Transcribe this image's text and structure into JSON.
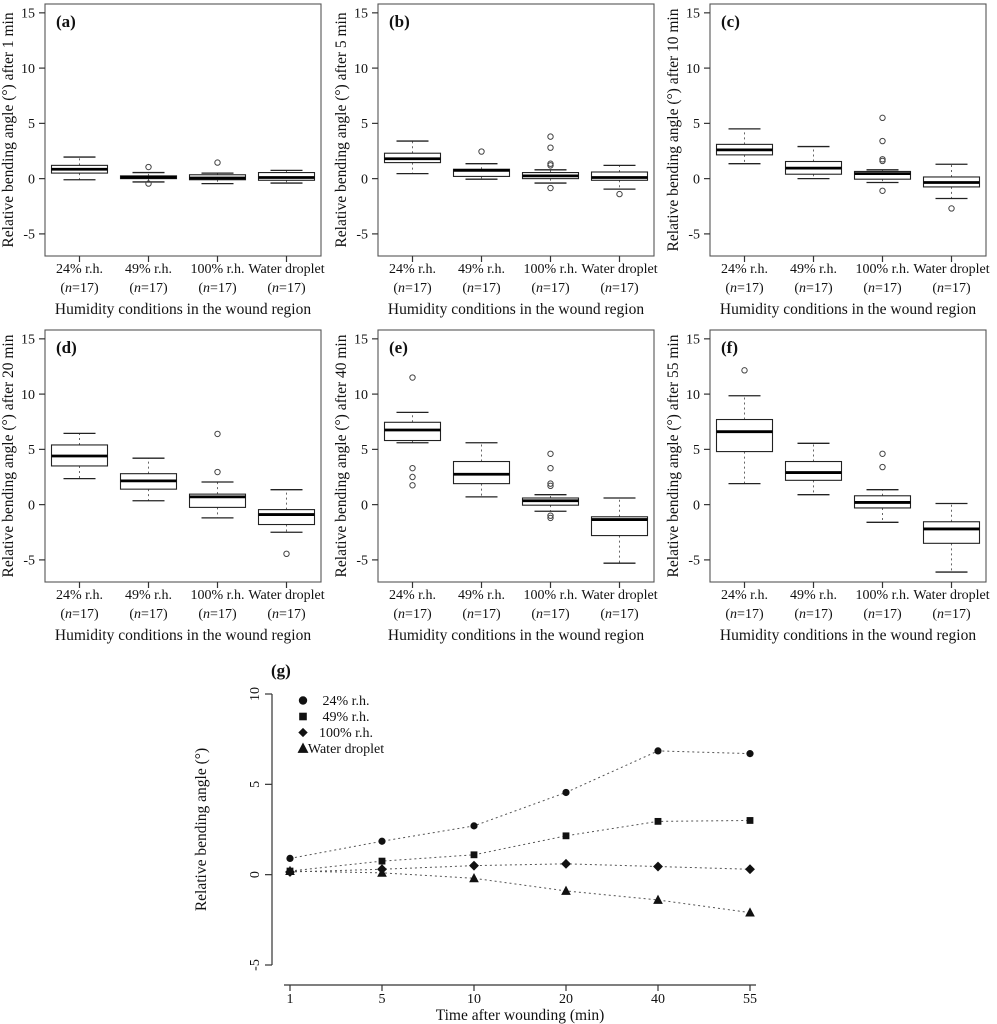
{
  "colors": {
    "foreground": "#111111",
    "frame": "#555555",
    "box_stroke": "#222222",
    "median": "#000000",
    "whisker": "#666666",
    "dotted_line": "#555555",
    "background": "#ffffff"
  },
  "chart_data": [
    {
      "id": "a",
      "type": "box",
      "panel_label": "(a)",
      "ylabel": "Relative bending angle (°) after 1 min",
      "xlabel": "Humidity conditions in the wound region",
      "categories": [
        "24% r.h.",
        "49% r.h.",
        "100% r.h.",
        "Water droplet"
      ],
      "n_label": "n=17",
      "yticks": [
        -5,
        0,
        5,
        10,
        15
      ],
      "ylim": [
        -7,
        15.8
      ],
      "grid": false,
      "whisker_style": "dashed",
      "boxes": [
        {
          "lo": -0.1,
          "q1": 0.5,
          "med": 0.85,
          "q3": 1.2,
          "hi": 1.95,
          "outliers": []
        },
        {
          "lo": -0.3,
          "q1": 0.0,
          "med": 0.12,
          "q3": 0.25,
          "hi": 0.55,
          "outliers": [
            1.05,
            -0.45
          ]
        },
        {
          "lo": -0.45,
          "q1": -0.1,
          "med": 0.05,
          "q3": 0.35,
          "hi": 0.5,
          "outliers": [
            1.45
          ]
        },
        {
          "lo": -0.4,
          "q1": -0.15,
          "med": 0.1,
          "q3": 0.55,
          "hi": 0.75,
          "outliers": []
        }
      ]
    },
    {
      "id": "b",
      "type": "box",
      "panel_label": "(b)",
      "ylabel": "Relative bending angle (°) after 5 min",
      "xlabel": "Humidity conditions in the wound region",
      "categories": [
        "24% r.h.",
        "49% r.h.",
        "100% r.h.",
        "Water droplet"
      ],
      "n_label": "n=17",
      "yticks": [
        -5,
        0,
        5,
        10,
        15
      ],
      "ylim": [
        -7,
        15.8
      ],
      "grid": false,
      "whisker_style": "dashed",
      "boxes": [
        {
          "lo": 0.45,
          "q1": 1.45,
          "med": 1.8,
          "q3": 2.3,
          "hi": 3.4,
          "outliers": []
        },
        {
          "lo": -0.05,
          "q1": 0.2,
          "med": 0.75,
          "q3": 0.85,
          "hi": 1.35,
          "outliers": [
            2.45
          ]
        },
        {
          "lo": -0.4,
          "q1": 0.0,
          "med": 0.25,
          "q3": 0.55,
          "hi": 0.8,
          "outliers": [
            3.8,
            2.8,
            1.35,
            1.2,
            -0.85
          ]
        },
        {
          "lo": -0.95,
          "q1": -0.15,
          "med": 0.1,
          "q3": 0.6,
          "hi": 1.2,
          "outliers": [
            -1.4
          ]
        }
      ]
    },
    {
      "id": "c",
      "type": "box",
      "panel_label": "(c)",
      "ylabel": "Relative bending angle (°) after 10 min",
      "xlabel": "Humidity conditions in the wound region",
      "categories": [
        "24% r.h.",
        "49% r.h.",
        "100% r.h.",
        "Water droplet"
      ],
      "n_label": "n=17",
      "yticks": [
        -5,
        0,
        5,
        10,
        15
      ],
      "ylim": [
        -7,
        15.8
      ],
      "grid": false,
      "whisker_style": "dashed",
      "boxes": [
        {
          "lo": 1.35,
          "q1": 2.15,
          "med": 2.6,
          "q3": 3.1,
          "hi": 4.5,
          "outliers": []
        },
        {
          "lo": 0.0,
          "q1": 0.4,
          "med": 0.95,
          "q3": 1.55,
          "hi": 2.9,
          "outliers": []
        },
        {
          "lo": -0.35,
          "q1": -0.05,
          "med": 0.45,
          "q3": 0.65,
          "hi": 0.8,
          "outliers": [
            5.5,
            3.4,
            1.75,
            1.6,
            -1.1
          ]
        },
        {
          "lo": -1.8,
          "q1": -0.75,
          "med": -0.35,
          "q3": 0.15,
          "hi": 1.3,
          "outliers": [
            -2.7
          ]
        }
      ]
    },
    {
      "id": "d",
      "type": "box",
      "panel_label": "(d)",
      "ylabel": "Relative bending angle (°) after 20 min",
      "xlabel": "Humidity conditions in the wound region",
      "categories": [
        "24% r.h.",
        "49% r.h.",
        "100% r.h.",
        "Water droplet"
      ],
      "n_label": "n=17",
      "yticks": [
        -5,
        0,
        5,
        10,
        15
      ],
      "ylim": [
        -7,
        15.8
      ],
      "grid": false,
      "whisker_style": "dashed",
      "boxes": [
        {
          "lo": 2.35,
          "q1": 3.5,
          "med": 4.4,
          "q3": 5.4,
          "hi": 6.45,
          "outliers": []
        },
        {
          "lo": 0.35,
          "q1": 1.4,
          "med": 2.15,
          "q3": 2.8,
          "hi": 4.2,
          "outliers": []
        },
        {
          "lo": -1.2,
          "q1": -0.25,
          "med": 0.7,
          "q3": 0.95,
          "hi": 2.05,
          "outliers": [
            6.4,
            2.95
          ]
        },
        {
          "lo": -2.5,
          "q1": -1.8,
          "med": -0.9,
          "q3": -0.45,
          "hi": 1.35,
          "outliers": [
            -4.45
          ]
        }
      ]
    },
    {
      "id": "e",
      "type": "box",
      "panel_label": "(e)",
      "ylabel": "Relative bending angle (°) after 40 min",
      "xlabel": "Humidity conditions in the wound region",
      "categories": [
        "24% r.h.",
        "49% r.h.",
        "100% r.h.",
        "Water droplet"
      ],
      "n_label": "n=17",
      "yticks": [
        -5,
        0,
        5,
        10,
        15
      ],
      "ylim": [
        -7,
        15.8
      ],
      "grid": false,
      "whisker_style": "dashed",
      "boxes": [
        {
          "lo": 5.6,
          "q1": 5.8,
          "med": 6.75,
          "q3": 7.45,
          "hi": 8.35,
          "outliers": [
            11.5,
            3.3,
            2.5,
            1.75
          ]
        },
        {
          "lo": 0.7,
          "q1": 1.9,
          "med": 2.75,
          "q3": 3.9,
          "hi": 5.6,
          "outliers": []
        },
        {
          "lo": -0.6,
          "q1": -0.05,
          "med": 0.35,
          "q3": 0.6,
          "hi": 0.9,
          "outliers": [
            4.6,
            3.3,
            1.9,
            1.7,
            -1.0,
            -1.2
          ]
        },
        {
          "lo": -5.3,
          "q1": -2.8,
          "med": -1.35,
          "q3": -1.1,
          "hi": 0.6,
          "outliers": []
        }
      ]
    },
    {
      "id": "f",
      "type": "box",
      "panel_label": "(f)",
      "ylabel": "Relative bending angle (°) after 55 min",
      "xlabel": "Humidity conditions in the wound region",
      "categories": [
        "24% r.h.",
        "49% r.h.",
        "100% r.h.",
        "Water droplet"
      ],
      "n_label": "n=17",
      "yticks": [
        -5,
        0,
        5,
        10,
        15
      ],
      "ylim": [
        -7,
        15.8
      ],
      "grid": false,
      "whisker_style": "dashed",
      "boxes": [
        {
          "lo": 1.9,
          "q1": 4.8,
          "med": 6.6,
          "q3": 7.7,
          "hi": 9.85,
          "outliers": [
            12.15
          ]
        },
        {
          "lo": 0.9,
          "q1": 2.2,
          "med": 2.9,
          "q3": 3.9,
          "hi": 5.55,
          "outliers": []
        },
        {
          "lo": -1.6,
          "q1": -0.3,
          "med": 0.2,
          "q3": 0.8,
          "hi": 1.35,
          "outliers": [
            4.6,
            3.4
          ]
        },
        {
          "lo": -6.1,
          "q1": -3.5,
          "med": -2.2,
          "q3": -1.55,
          "hi": 0.1,
          "outliers": []
        }
      ]
    },
    {
      "id": "g",
      "type": "line",
      "panel_label": "(g)",
      "xlabel": "Time after wounding (min)",
      "ylabel": "Relative bending angle (°)",
      "x_categories": [
        "1",
        "5",
        "10",
        "20",
        "40",
        "55"
      ],
      "yticks": [
        -5,
        0,
        5,
        10
      ],
      "ylim": [
        -5,
        10
      ],
      "grid": false,
      "line_style": "dotted",
      "legend_position": "top-left-inside",
      "series": [
        {
          "name": "24% r.h.",
          "marker": "circle",
          "values": [
            0.9,
            1.85,
            2.7,
            4.55,
            6.85,
            6.7
          ]
        },
        {
          "name": "49% r.h.",
          "marker": "square",
          "values": [
            0.2,
            0.75,
            1.1,
            2.15,
            2.95,
            3.0
          ]
        },
        {
          "name": "100% r.h.",
          "marker": "diamond",
          "values": [
            0.15,
            0.3,
            0.5,
            0.6,
            0.45,
            0.3
          ]
        },
        {
          "name": "Water droplet",
          "marker": "triangle",
          "values": [
            0.2,
            0.1,
            -0.2,
            -0.9,
            -1.4,
            -2.1
          ]
        }
      ]
    }
  ]
}
